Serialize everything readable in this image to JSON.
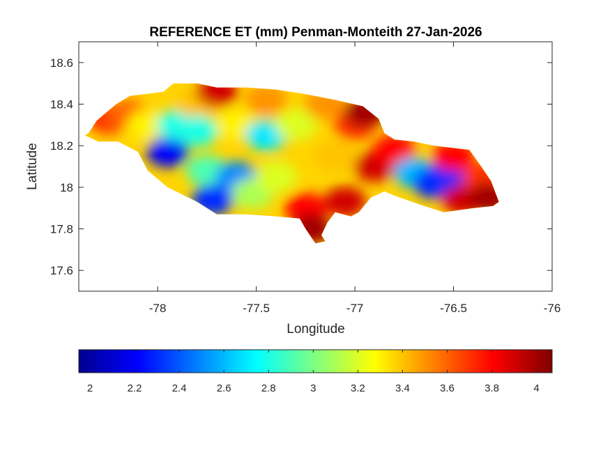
{
  "chart_data": {
    "type": "heatmap",
    "title": "REFERENCE ET (mm) Penman-Monteith 27-Jan-2026",
    "xlabel": "Longitude",
    "ylabel": "Latitude",
    "xlim": [
      -78.4,
      -76
    ],
    "ylim": [
      17.5,
      18.7
    ],
    "x_ticks": [
      -78,
      -77.5,
      -77,
      -76.5,
      -76
    ],
    "x_tick_labels": [
      "-78",
      "-77.5",
      "-77",
      "-76.5",
      "-76"
    ],
    "y_ticks": [
      17.6,
      17.8,
      18,
      18.2,
      18.4,
      18.6
    ],
    "y_tick_labels": [
      "17.6",
      "17.8",
      "18",
      "18.2",
      "18.4",
      "18.6"
    ],
    "colorbar": {
      "colormap": "jet",
      "orientation": "horizontal",
      "location": "below",
      "clim": [
        1.95,
        4.07
      ],
      "ticks": [
        2,
        2.2,
        2.4,
        2.6,
        2.8,
        3,
        3.2,
        3.4,
        3.6,
        3.8,
        4
      ],
      "tick_labels": [
        "2",
        "2.2",
        "2.4",
        "2.6",
        "2.8",
        "3",
        "3.2",
        "3.4",
        "3.6",
        "3.8",
        "4"
      ]
    },
    "grid": false,
    "island_outline_lonlat": [
      [
        -78.35,
        18.26
      ],
      [
        -78.31,
        18.32
      ],
      [
        -78.26,
        18.36
      ],
      [
        -78.21,
        18.4
      ],
      [
        -78.14,
        18.44
      ],
      [
        -78.05,
        18.45
      ],
      [
        -77.97,
        18.46
      ],
      [
        -77.92,
        18.5
      ],
      [
        -77.8,
        18.5
      ],
      [
        -77.7,
        18.48
      ],
      [
        -77.55,
        18.48
      ],
      [
        -77.4,
        18.47
      ],
      [
        -77.26,
        18.45
      ],
      [
        -77.1,
        18.42
      ],
      [
        -76.96,
        18.39
      ],
      [
        -76.88,
        18.33
      ],
      [
        -76.85,
        18.26
      ],
      [
        -76.8,
        18.23
      ],
      [
        -76.7,
        18.22
      ],
      [
        -76.6,
        18.2
      ],
      [
        -76.42,
        18.18
      ],
      [
        -76.36,
        18.1
      ],
      [
        -76.31,
        18.03
      ],
      [
        -76.27,
        17.93
      ],
      [
        -76.3,
        17.91
      ],
      [
        -76.4,
        17.9
      ],
      [
        -76.55,
        17.88
      ],
      [
        -76.68,
        17.92
      ],
      [
        -76.8,
        17.96
      ],
      [
        -76.85,
        17.98
      ],
      [
        -76.92,
        17.95
      ],
      [
        -76.98,
        17.88
      ],
      [
        -77.02,
        17.86
      ],
      [
        -77.1,
        17.88
      ],
      [
        -77.14,
        17.83
      ],
      [
        -77.17,
        17.77
      ],
      [
        -77.15,
        17.74
      ],
      [
        -77.2,
        17.73
      ],
      [
        -77.25,
        17.8
      ],
      [
        -77.28,
        17.85
      ],
      [
        -77.4,
        17.86
      ],
      [
        -77.55,
        17.87
      ],
      [
        -77.7,
        17.87
      ],
      [
        -77.8,
        17.93
      ],
      [
        -77.95,
        18.0
      ],
      [
        -78.05,
        18.08
      ],
      [
        -78.1,
        18.17
      ],
      [
        -78.2,
        18.22
      ],
      [
        -78.3,
        18.22
      ],
      [
        -78.37,
        18.25
      ]
    ],
    "et_field": [
      {
        "lon": -78.25,
        "lat": 18.33,
        "value": 3.7
      },
      {
        "lon": -78.15,
        "lat": 18.35,
        "value": 3.6
      },
      {
        "lon": -78.05,
        "lat": 18.3,
        "value": 3.3
      },
      {
        "lon": -77.95,
        "lat": 18.17,
        "value": 2.2
      },
      {
        "lon": -77.9,
        "lat": 18.3,
        "value": 2.8
      },
      {
        "lon": -77.8,
        "lat": 18.4,
        "value": 3.4
      },
      {
        "lon": -77.8,
        "lat": 18.27,
        "value": 2.8
      },
      {
        "lon": -77.75,
        "lat": 18.08,
        "value": 2.9
      },
      {
        "lon": -77.72,
        "lat": 17.94,
        "value": 2.3
      },
      {
        "lon": -77.7,
        "lat": 18.46,
        "value": 3.9
      },
      {
        "lon": -77.6,
        "lat": 18.3,
        "value": 3.3
      },
      {
        "lon": -77.6,
        "lat": 18.05,
        "value": 2.5
      },
      {
        "lon": -77.52,
        "lat": 17.97,
        "value": 3.1
      },
      {
        "lon": -77.45,
        "lat": 18.25,
        "value": 2.7
      },
      {
        "lon": -77.45,
        "lat": 18.42,
        "value": 3.5
      },
      {
        "lon": -77.4,
        "lat": 18.05,
        "value": 3.2
      },
      {
        "lon": -77.3,
        "lat": 18.3,
        "value": 3.2
      },
      {
        "lon": -77.25,
        "lat": 17.9,
        "value": 3.8
      },
      {
        "lon": -77.22,
        "lat": 17.8,
        "value": 4.0
      },
      {
        "lon": -77.15,
        "lat": 18.4,
        "value": 3.5
      },
      {
        "lon": -77.1,
        "lat": 18.15,
        "value": 3.4
      },
      {
        "lon": -77.05,
        "lat": 17.93,
        "value": 3.9
      },
      {
        "lon": -77.0,
        "lat": 18.3,
        "value": 3.7
      },
      {
        "lon": -76.95,
        "lat": 18.36,
        "value": 4.0
      },
      {
        "lon": -76.9,
        "lat": 18.1,
        "value": 3.9
      },
      {
        "lon": -76.8,
        "lat": 18.18,
        "value": 3.8
      },
      {
        "lon": -76.7,
        "lat": 18.07,
        "value": 2.6
      },
      {
        "lon": -76.6,
        "lat": 18.02,
        "value": 2.3
      },
      {
        "lon": -76.55,
        "lat": 18.05,
        "value": 2.3
      },
      {
        "lon": -76.5,
        "lat": 18.15,
        "value": 3.8
      },
      {
        "lon": -76.45,
        "lat": 17.94,
        "value": 3.9
      },
      {
        "lon": -76.35,
        "lat": 18.05,
        "value": 3.7
      },
      {
        "lon": -76.32,
        "lat": 17.95,
        "value": 4.0
      }
    ]
  }
}
